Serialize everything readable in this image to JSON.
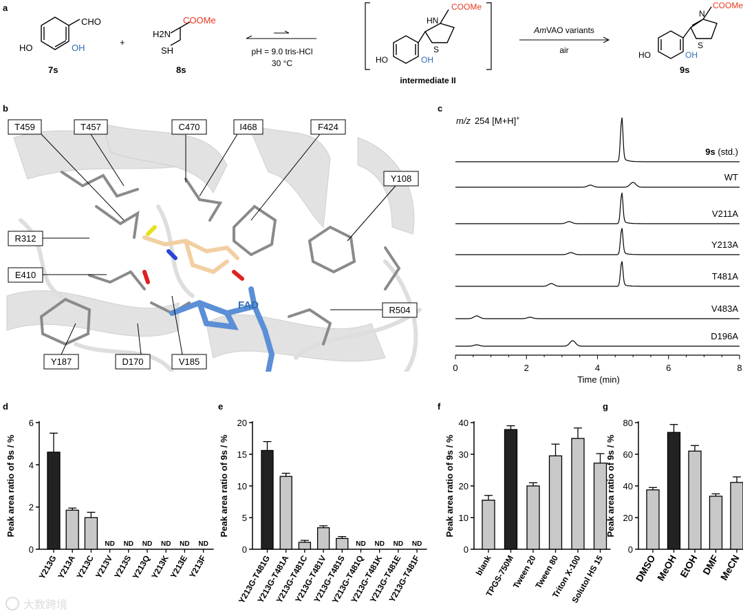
{
  "panel_a": {
    "label": "a",
    "compound_7s": {
      "id": "7s",
      "cho": "CHO",
      "ho": "HO",
      "oh": "OH"
    },
    "plus": "+",
    "compound_8s": {
      "id": "8s",
      "h2n": "H2N",
      "ester": "COOMe",
      "sh": "SH"
    },
    "conditions_below": [
      "pH = 9.0 tris-HCl",
      "30 °C"
    ],
    "intermediate": {
      "label": "intermediate II",
      "nh": "HN",
      "ester": "COOMe",
      "s": "S",
      "ho": "HO",
      "oh": "OH"
    },
    "enzyme_above": {
      "italic": "Am",
      "rest": "VAO variants"
    },
    "enzyme_below": "air",
    "product": {
      "id": "9s",
      "n": "N",
      "ester": "COOMe",
      "s": "S",
      "ho": "HO",
      "oh": "OH"
    }
  },
  "panel_b": {
    "label": "b",
    "residues": [
      "T459",
      "T457",
      "C470",
      "I468",
      "F424",
      "Y108",
      "R312",
      "E410",
      "R504",
      "Y187",
      "D170",
      "V185"
    ],
    "cofactor": "FAD"
  },
  "panel_c": {
    "label": "c",
    "title_italic": "m/z",
    "title_rest": "254 [M+H]",
    "title_sup": "+",
    "traces": [
      {
        "bold": "9s",
        "rest": " (std.)",
        "peaks": [
          [
            4.68,
            60
          ]
        ]
      },
      {
        "bold": "",
        "rest": "WT",
        "peaks": [
          [
            3.8,
            3
          ],
          [
            5.0,
            7
          ]
        ]
      },
      {
        "bold": "",
        "rest": "V211A",
        "peaks": [
          [
            3.2,
            3
          ],
          [
            4.68,
            42
          ]
        ]
      },
      {
        "bold": "",
        "rest": "Y213A",
        "peaks": [
          [
            3.25,
            3
          ],
          [
            4.68,
            36
          ]
        ]
      },
      {
        "bold": "",
        "rest": "T481A",
        "peaks": [
          [
            2.7,
            4
          ],
          [
            4.68,
            34
          ]
        ]
      },
      {
        "bold": "",
        "rest": "V483A",
        "peaks": [
          [
            0.6,
            4
          ],
          [
            2.1,
            2
          ]
        ]
      },
      {
        "bold": "",
        "rest": "D196A",
        "peaks": [
          [
            0.6,
            2
          ],
          [
            3.3,
            8
          ]
        ]
      }
    ],
    "xlabel": "Time (min)",
    "xticks": [
      "0",
      "2",
      "4",
      "6",
      "8"
    ],
    "xlim": [
      0,
      8
    ]
  },
  "chart_data": [
    {
      "panel": "d",
      "type": "bar",
      "ylabel": "Peak area ratio of 9s / %",
      "ylim": [
        0,
        6
      ],
      "yticks": [
        "0",
        "2",
        "4",
        "6"
      ],
      "categories": [
        "Y213G",
        "Y213A",
        "Y213C",
        "Y213V",
        "Y213S",
        "Y213Q",
        "Y213K",
        "Y213E",
        "Y213F"
      ],
      "values": [
        4.6,
        1.85,
        1.5,
        null,
        null,
        null,
        null,
        null,
        null
      ],
      "errors": [
        0.9,
        0.1,
        0.25,
        0,
        0,
        0,
        0,
        0,
        0
      ],
      "highlight": [
        0
      ],
      "nd_label": "ND"
    },
    {
      "panel": "e",
      "type": "bar",
      "ylabel": "Peak area ratio of 9s / %",
      "ylim": [
        0,
        20
      ],
      "yticks": [
        "0",
        "5",
        "10",
        "15",
        "20"
      ],
      "categories": [
        "Y213G-T481G",
        "Y213G-T481A",
        "Y213G-T481C",
        "Y213G-T481V",
        "Y213G-T481S",
        "Y213G-T481Q",
        "Y213G-T481K",
        "Y213G-T481E",
        "Y213G-T481F"
      ],
      "values": [
        15.6,
        11.5,
        1.1,
        3.4,
        1.7,
        null,
        null,
        null,
        null
      ],
      "errors": [
        1.4,
        0.5,
        0.3,
        0.3,
        0.3,
        0,
        0,
        0,
        0
      ],
      "highlight": [
        0
      ],
      "nd_label": "ND"
    },
    {
      "panel": "f",
      "type": "bar",
      "ylabel": "Peak area ratio of 9s / %",
      "ylim": [
        0,
        40
      ],
      "yticks": [
        "0",
        "10",
        "20",
        "30",
        "40"
      ],
      "categories": [
        "blank",
        "TPGS-750M",
        "Tween 20",
        "Tween 80",
        "Triton X-100",
        "Solutol HS 15"
      ],
      "values": [
        15.5,
        37.8,
        20.0,
        29.5,
        35.0,
        27.2
      ],
      "errors": [
        1.5,
        1.2,
        1.0,
        3.7,
        3.3,
        3.0
      ],
      "highlight": [
        1
      ]
    },
    {
      "panel": "g",
      "type": "bar",
      "ylabel": "Peak area ratio of 9s / %",
      "ylim": [
        0,
        80
      ],
      "yticks": [
        "0",
        "20",
        "40",
        "60",
        "80"
      ],
      "categories": [
        "DMSO",
        "MeOH",
        "EtOH",
        "DMF",
        "MeCN"
      ],
      "values": [
        37.5,
        73.8,
        62.0,
        33.5,
        42.2
      ],
      "errors": [
        1.5,
        5.0,
        3.5,
        1.5,
        3.5
      ],
      "highlight": [
        1
      ]
    }
  ],
  "watermark": "大数跨境",
  "colors": {
    "red": "#e8371e",
    "blue": "#2f6db5",
    "fad": "#5b8fd6",
    "bar_dark": "#222222",
    "bar_light": "#c8c8c8",
    "protein": "#d9d9d9"
  }
}
